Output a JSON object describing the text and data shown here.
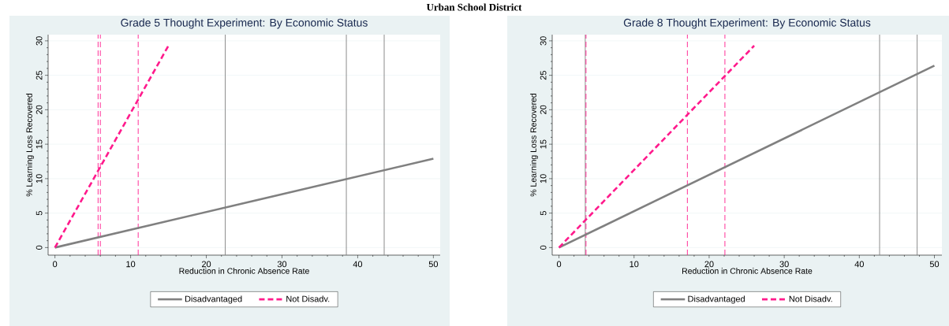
{
  "chart_data": [
    {
      "type": "line",
      "title": "Grade 5 Thought Experiment: By Economic Status",
      "xlabel": "Reduction in Chronic Absence Rate",
      "ylabel": "% Learning Loss Recovered",
      "annotations": [
        "Urban School District"
      ],
      "series": [
        {
          "name": "Disadvantaged",
          "color": "#808080",
          "line_style": "solid",
          "x": [
            0,
            50
          ],
          "values": [
            0,
            12.9
          ]
        },
        {
          "name": "Not Disadv.",
          "color": "#ff1a8c",
          "line_style": "dashed",
          "x": [
            0,
            15
          ],
          "values": [
            0,
            29.3
          ]
        }
      ],
      "ref_lines": [
        {
          "axis": "x",
          "value": 5.7,
          "color": "#ff1a8c",
          "line_style": "dashed"
        },
        {
          "axis": "x",
          "value": 6.0,
          "color": "#ff1a8c",
          "line_style": "dashed"
        },
        {
          "axis": "x",
          "value": 11.0,
          "color": "#ff1a8c",
          "line_style": "dashed"
        },
        {
          "axis": "x",
          "value": 22.5,
          "color": "#808080",
          "line_style": "solid"
        },
        {
          "axis": "x",
          "value": 38.5,
          "color": "#808080",
          "line_style": "solid"
        },
        {
          "axis": "x",
          "value": 43.5,
          "color": "#808080",
          "line_style": "solid"
        }
      ],
      "xlim": [
        -0.9,
        50.9
      ],
      "ylim": [
        -1.1,
        30.9
      ],
      "xticks": [
        0,
        10,
        20,
        30,
        40,
        50
      ],
      "yticks": [
        0,
        5,
        10,
        15,
        20,
        25,
        30
      ],
      "grid": "y",
      "legend": "bottom",
      "marker": "none"
    },
    {
      "type": "line",
      "title": "Grade 8 Thought Experiment: By Economic Status",
      "xlabel": "Reduction in Chronic Absence Rate",
      "ylabel": "% Learning Loss Recovered",
      "series": [
        {
          "name": "Disadvantaged",
          "color": "#808080",
          "line_style": "solid",
          "x": [
            0,
            50
          ],
          "values": [
            0,
            26.4
          ]
        },
        {
          "name": "Not Disadv.",
          "color": "#ff1a8c",
          "line_style": "dashed",
          "x": [
            0,
            26
          ],
          "values": [
            0,
            29.3
          ]
        }
      ],
      "ref_lines": [
        {
          "axis": "x",
          "value": 3.5,
          "color": "#808080",
          "line_style": "solid"
        },
        {
          "axis": "x",
          "value": 3.6,
          "color": "#ff1a8c",
          "line_style": "dashed"
        },
        {
          "axis": "x",
          "value": 17.1,
          "color": "#ff1a8c",
          "line_style": "dashed"
        },
        {
          "axis": "x",
          "value": 22.1,
          "color": "#ff1a8c",
          "line_style": "dashed"
        },
        {
          "axis": "x",
          "value": 42.7,
          "color": "#808080",
          "line_style": "solid"
        },
        {
          "axis": "x",
          "value": 47.7,
          "color": "#808080",
          "line_style": "solid"
        }
      ],
      "xlim": [
        -0.9,
        51.0
      ],
      "ylim": [
        -1.1,
        30.9
      ],
      "xticks": [
        0,
        10,
        20,
        30,
        40,
        50
      ],
      "yticks": [
        0,
        5,
        10,
        15,
        20,
        25,
        30
      ],
      "grid": "y",
      "legend": "bottom",
      "marker": "none"
    }
  ]
}
